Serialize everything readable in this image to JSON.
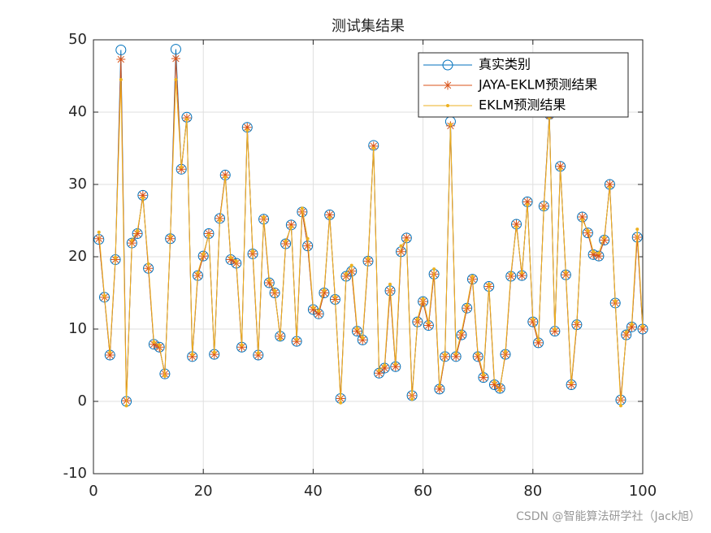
{
  "chart_data": {
    "type": "line",
    "title": "测试集结果",
    "x": [
      1,
      2,
      3,
      4,
      5,
      6,
      7,
      8,
      9,
      10,
      11,
      12,
      13,
      14,
      15,
      16,
      17,
      18,
      19,
      20,
      21,
      22,
      23,
      24,
      25,
      26,
      27,
      28,
      29,
      30,
      31,
      32,
      33,
      34,
      35,
      36,
      37,
      38,
      39,
      40,
      41,
      42,
      43,
      44,
      45,
      46,
      47,
      48,
      49,
      50,
      51,
      52,
      53,
      54,
      55,
      56,
      57,
      58,
      59,
      60,
      61,
      62,
      63,
      64,
      65,
      66,
      67,
      68,
      69,
      70,
      71,
      72,
      73,
      74,
      75,
      76,
      77,
      78,
      79,
      80,
      81,
      82,
      83,
      84,
      85,
      86,
      87,
      88,
      89,
      90,
      91,
      92,
      93,
      94,
      95,
      96,
      97,
      98,
      99,
      100
    ],
    "series": [
      {
        "name": "真实类别",
        "color": "#0072BD",
        "marker": "circle",
        "values": [
          22.4,
          14.4,
          6.4,
          19.6,
          48.6,
          0,
          21.9,
          23.2,
          28.5,
          18.4,
          7.9,
          7.5,
          3.8,
          22.5,
          48.7,
          32.1,
          39.3,
          6.2,
          17.4,
          20.1,
          23.2,
          6.5,
          25.3,
          31.3,
          19.6,
          19.1,
          7.5,
          37.9,
          20.4,
          6.4,
          25.2,
          16.4,
          15.0,
          9.0,
          21.8,
          24.4,
          8.3,
          26.2,
          21.5,
          12.7,
          12.1,
          15.0,
          25.8,
          14.1,
          0.4,
          17.3,
          18.0,
          9.7,
          8.5,
          19.4,
          35.4,
          3.9,
          4.6,
          15.3,
          4.8,
          20.7,
          22.6,
          0.8,
          11.0,
          13.8,
          10.5,
          17.6,
          1.7,
          6.2,
          38.7,
          6.2,
          9.2,
          12.9,
          16.9,
          6.2,
          3.3,
          15.9,
          2.3,
          1.8,
          6.5,
          17.3,
          24.5,
          17.4,
          27.6,
          11.0,
          8.1,
          27.0,
          39.7,
          9.7,
          32.5,
          17.5,
          2.3,
          10.6,
          25.5,
          23.3,
          20.3,
          20.1,
          22.3,
          30.0,
          13.6,
          0.2,
          9.2,
          10.3,
          22.7,
          10.0
        ]
      },
      {
        "name": "JAYA-EKLM预测结果",
        "color": "#D95319",
        "marker": "asterisk",
        "values": [
          22.5,
          14.4,
          6.4,
          19.6,
          47.3,
          0.1,
          21.9,
          23.2,
          28.5,
          18.4,
          7.9,
          7.5,
          3.8,
          22.5,
          47.4,
          32.1,
          39.2,
          6.2,
          17.4,
          20.1,
          23.2,
          6.5,
          25.3,
          31.3,
          19.6,
          19.1,
          7.5,
          37.9,
          20.4,
          6.4,
          25.2,
          16.4,
          15.0,
          9.0,
          21.8,
          24.4,
          8.3,
          26.2,
          21.5,
          12.7,
          12.1,
          15.0,
          25.8,
          14.1,
          0.4,
          17.3,
          18.0,
          9.7,
          8.5,
          19.4,
          35.3,
          3.9,
          4.6,
          15.3,
          4.8,
          20.7,
          22.6,
          0.8,
          11.0,
          13.8,
          10.5,
          17.6,
          1.7,
          6.2,
          38.1,
          6.2,
          9.2,
          12.9,
          16.9,
          6.2,
          3.3,
          15.9,
          2.3,
          1.8,
          6.5,
          17.3,
          24.5,
          17.4,
          27.6,
          11.0,
          8.1,
          27.0,
          39.5,
          9.7,
          32.5,
          17.5,
          2.3,
          10.6,
          25.5,
          23.3,
          20.3,
          20.1,
          22.3,
          30.0,
          13.6,
          0.2,
          9.2,
          10.3,
          22.7,
          10.0
        ]
      },
      {
        "name": "EKLM预测结果",
        "color": "#EDB120",
        "marker": "point",
        "values": [
          23.4,
          14.6,
          6.8,
          19.9,
          44.5,
          -0.6,
          22.3,
          23.6,
          28.1,
          19.0,
          8.2,
          7.8,
          3.5,
          22.9,
          44.5,
          32.4,
          39.0,
          6.5,
          17.8,
          20.4,
          23.0,
          6.8,
          25.0,
          31.0,
          19.9,
          19.4,
          7.8,
          37.5,
          20.8,
          6.7,
          25.5,
          16.8,
          15.3,
          8.6,
          22.2,
          24.1,
          8.6,
          26.7,
          22.5,
          13.0,
          12.5,
          15.4,
          25.4,
          14.5,
          -0.2,
          17.7,
          18.8,
          10.1,
          8.8,
          19.8,
          35.0,
          4.3,
          5.0,
          16.2,
          5.2,
          21.5,
          22.3,
          0.3,
          11.4,
          14.2,
          10.9,
          18.3,
          2.1,
          6.5,
          38.3,
          6.6,
          9.6,
          13.3,
          17.3,
          6.6,
          3.7,
          16.2,
          2.7,
          1.5,
          6.9,
          17.7,
          24.1,
          17.8,
          27.2,
          11.4,
          8.5,
          26.6,
          39.2,
          10.0,
          32.1,
          17.9,
          2.6,
          11.0,
          25.1,
          23.6,
          20.7,
          20.5,
          22.7,
          29.6,
          13.9,
          -0.6,
          9.6,
          10.7,
          23.8,
          10.4
        ]
      }
    ],
    "xlim": [
      0,
      100
    ],
    "ylim": [
      -10,
      50
    ],
    "xticks": [
      0,
      20,
      40,
      60,
      80,
      100
    ],
    "yticks": [
      -10,
      0,
      10,
      20,
      30,
      40,
      50
    ],
    "grid": true,
    "legend": "top-right"
  },
  "watermark": "CSDN @智能算法研学社（Jack旭）"
}
